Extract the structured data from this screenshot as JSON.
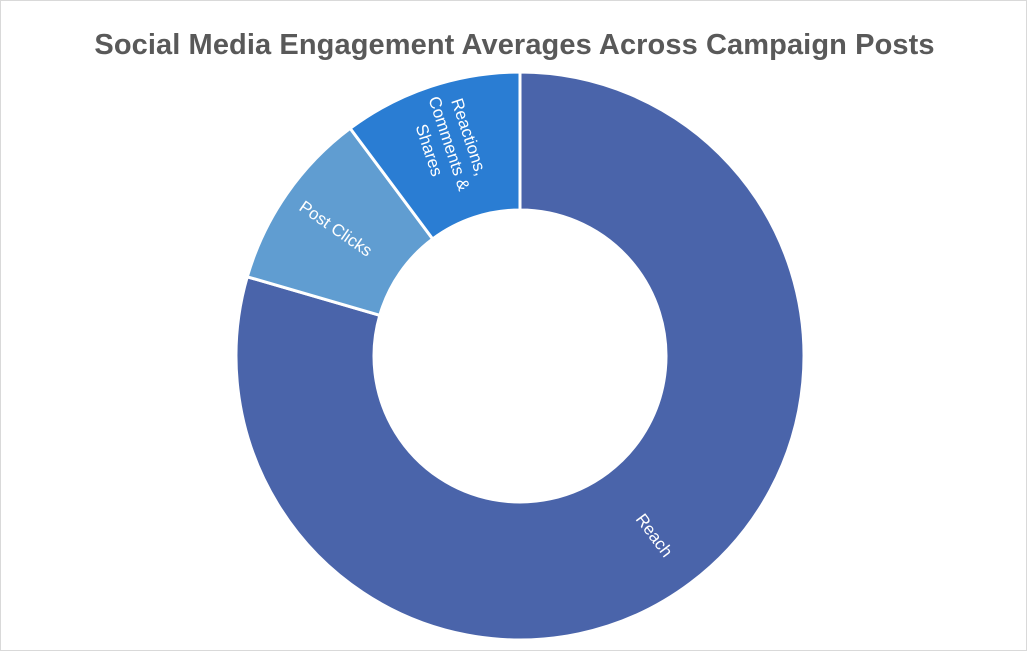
{
  "chart_data": {
    "type": "pie",
    "variant": "doughnut",
    "title": "Social Media Engagement Averages Across Campaign Posts",
    "categories": [
      "Reach",
      "Post Clicks",
      "Reactions, Comments & Shares"
    ],
    "values": [
      79.5,
      10.3,
      10.2
    ],
    "value_unit": "percent of total (estimated)",
    "label_lines": [
      [
        "Reach"
      ],
      [
        "Post Clicks"
      ],
      [
        "Reactions,",
        "Comments &",
        "Shares"
      ]
    ],
    "colors": [
      "#4a64aa",
      "#609dd1",
      "#2a7dd3"
    ],
    "slice_border_color": "#ffffff",
    "start": "12 o'clock",
    "direction": "clockwise",
    "legend": "none",
    "data_labels": "category names inside slices"
  }
}
